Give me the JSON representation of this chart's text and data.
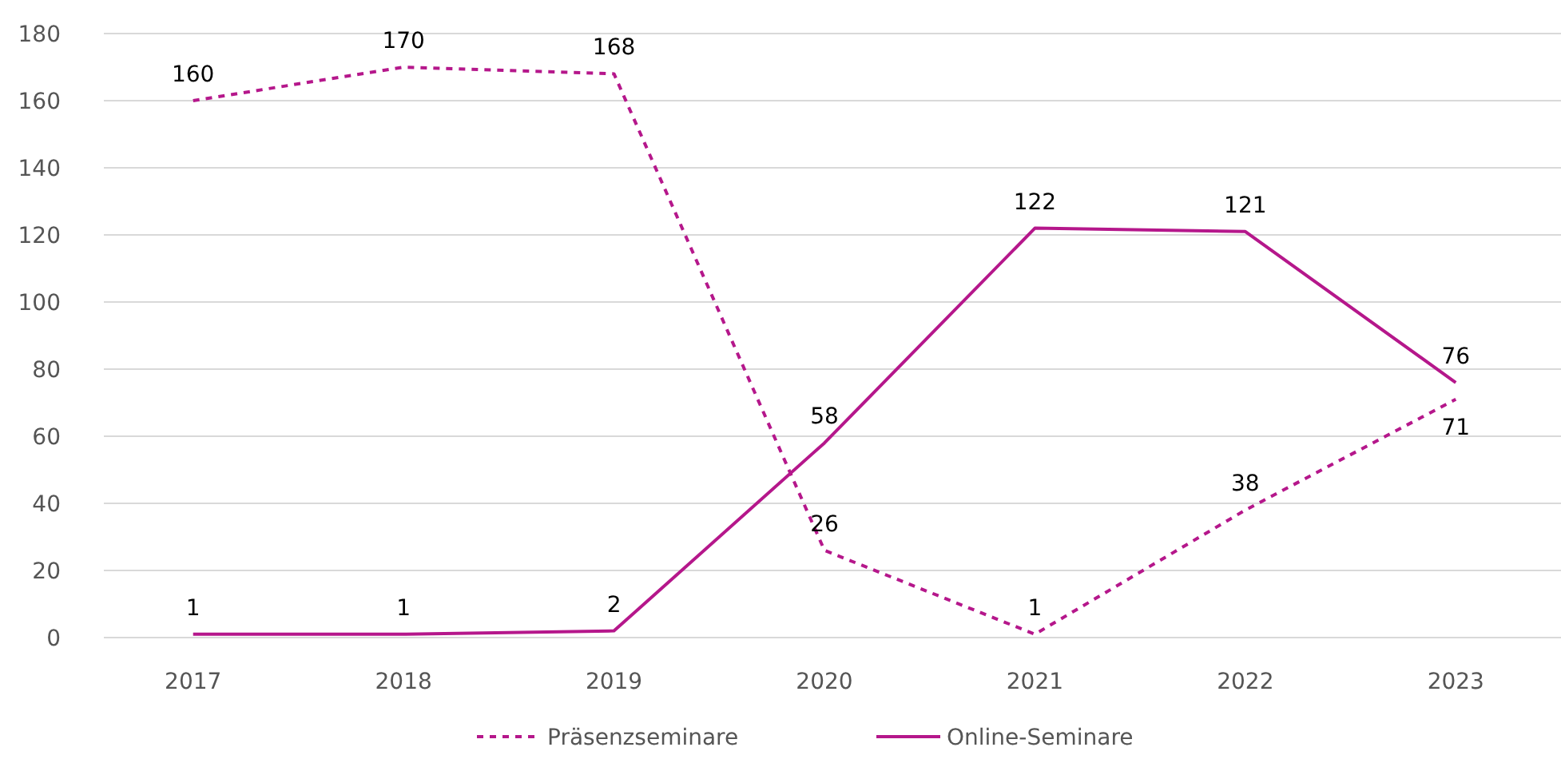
{
  "chart_data": {
    "type": "line",
    "categories": [
      "2017",
      "2018",
      "2019",
      "2020",
      "2021",
      "2022",
      "2023"
    ],
    "series": [
      {
        "name": "Präsenzseminare",
        "color": "#b5178b",
        "values": [
          160,
          170,
          168,
          26,
          1,
          38,
          71
        ],
        "line_style": "dashed"
      },
      {
        "name": "Online-Seminare",
        "color": "#b5178b",
        "values": [
          1,
          1,
          2,
          58,
          122,
          121,
          76
        ],
        "line_style": "solid"
      }
    ],
    "ylim": [
      0,
      180
    ],
    "yticks": [
      0,
      20,
      40,
      60,
      80,
      100,
      120,
      140,
      160,
      180
    ],
    "grid": "y",
    "legend": "bottom",
    "data_labels": true
  }
}
